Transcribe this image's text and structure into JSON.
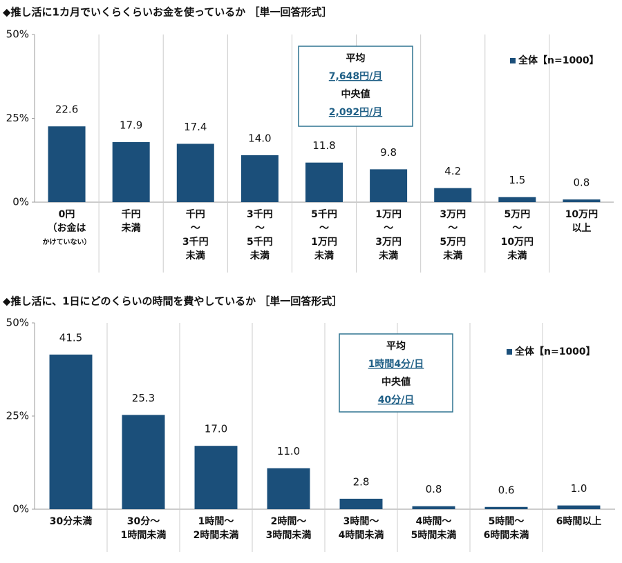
{
  "chart_data": [
    {
      "type": "bar",
      "title": "◆推し活に1カ月でいくらくらいお金を使っているか ［単一回答形式］",
      "categories": [
        [
          "0円",
          "（お金は",
          "かけていない）"
        ],
        [
          "千円",
          "未満"
        ],
        [
          "千円",
          "～",
          "3千円",
          "未満"
        ],
        [
          "3千円",
          "～",
          "5千円",
          "未満"
        ],
        [
          "5千円",
          "～",
          "1万円",
          "未満"
        ],
        [
          "1万円",
          "～",
          "3万円",
          "未満"
        ],
        [
          "3万円",
          "～",
          "5万円",
          "未満"
        ],
        [
          "5万円",
          "～",
          "10万円",
          "未満"
        ],
        [
          "10万円",
          "以上"
        ]
      ],
      "series": [
        {
          "name": "全体【n=1000】",
          "color": "#1b4f7a",
          "values": [
            22.6,
            17.9,
            17.4,
            14.0,
            11.8,
            9.8,
            4.2,
            1.5,
            0.8
          ],
          "value_labels": [
            "22.6",
            "17.9",
            "17.4",
            "14.0",
            "11.8",
            "9.8",
            "4.2",
            "1.5",
            "0.8"
          ]
        }
      ],
      "ylim": [
        0,
        50
      ],
      "yticks": [
        {
          "value": 0,
          "label": "0%"
        },
        {
          "value": 25,
          "label": "25%"
        },
        {
          "value": 50,
          "label": "50%"
        }
      ],
      "annotation": [
        "平均",
        "7,648円/月",
        "中央値",
        "2,092円/月"
      ]
    },
    {
      "type": "bar",
      "title": "◆推し活に、1日にどのくらいの時間を費やしているか ［単一回答形式］",
      "categories": [
        [
          "30分未満"
        ],
        [
          "30分～",
          "1時間未満"
        ],
        [
          "1時間～",
          "2時間未満"
        ],
        [
          "2時間～",
          "3時間未満"
        ],
        [
          "3時間～",
          "4時間未満"
        ],
        [
          "4時間～",
          "5時間未満"
        ],
        [
          "5時間～",
          "6時間未満"
        ],
        [
          "6時間以上"
        ]
      ],
      "series": [
        {
          "name": "全体【n=1000】",
          "color": "#1b4f7a",
          "values": [
            41.5,
            25.3,
            17.0,
            11.0,
            2.8,
            0.8,
            0.6,
            1.0
          ],
          "value_labels": [
            "41.5",
            "25.3",
            "17.0",
            "11.0",
            "2.8",
            "0.8",
            "0.6",
            "1.0"
          ]
        }
      ],
      "ylim": [
        0,
        50
      ],
      "yticks": [
        {
          "value": 0,
          "label": "0%"
        },
        {
          "value": 25,
          "label": "25%"
        },
        {
          "value": 50,
          "label": "50%"
        }
      ],
      "annotation": [
        "平均",
        "1時間4分/日",
        "中央値",
        "40分/日"
      ]
    }
  ]
}
